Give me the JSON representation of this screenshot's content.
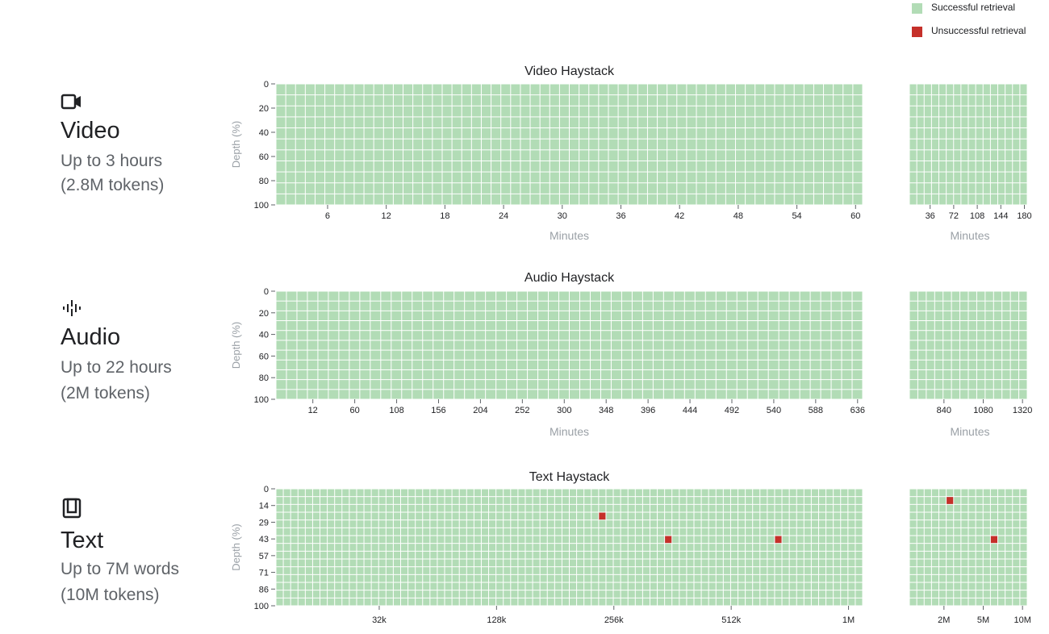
{
  "legend": {
    "success_label": "Successful retrieval",
    "fail_label": "Unsuccessful retrieval",
    "success_color": "#b2dcb6",
    "fail_color": "#c5302a"
  },
  "rows": [
    {
      "icon": "video-camera-icon",
      "title": "Video",
      "subtitle_1": "Up to 3 hours",
      "subtitle_2": "(2.8M tokens)"
    },
    {
      "icon": "audio-waveform-icon",
      "title": "Audio",
      "subtitle_1": "Up to 22 hours",
      "subtitle_2": "(2M tokens)"
    },
    {
      "icon": "book-icon",
      "title": "Text",
      "subtitle_1": "Up to 7M words",
      "subtitle_2": "(10M tokens)"
    }
  ],
  "chart_data": [
    {
      "type": "heatmap",
      "title": "Video Haystack",
      "xlabel": "Minutes",
      "ylabel": "Depth (%)",
      "y_ticks": [
        "0",
        "20",
        "40",
        "60",
        "80",
        "100"
      ],
      "x_ticks": [
        "6",
        "12",
        "18",
        "24",
        "30",
        "36",
        "42",
        "48",
        "54",
        "60"
      ],
      "grid_cols": 60,
      "grid_rows": 11,
      "failures": [],
      "extension": {
        "xlabel": "Minutes",
        "x_ticks": [
          "36",
          "72",
          "108",
          "144",
          "180"
        ],
        "grid_cols": 16,
        "grid_rows": 11,
        "failures": []
      }
    },
    {
      "type": "heatmap",
      "title": "Audio Haystack",
      "xlabel": "Minutes",
      "ylabel": "Depth (%)",
      "y_ticks": [
        "0",
        "20",
        "40",
        "60",
        "80",
        "100"
      ],
      "x_ticks": [
        "12",
        "60",
        "108",
        "156",
        "204",
        "252",
        "300",
        "348",
        "396",
        "444",
        "492",
        "540",
        "588",
        "636"
      ],
      "grid_cols": 56,
      "grid_rows": 11,
      "failures": [],
      "extension": {
        "xlabel": "Minutes",
        "x_ticks": [
          "840",
          "1080",
          "1320"
        ],
        "grid_cols": 14,
        "grid_rows": 11,
        "failures": []
      }
    },
    {
      "type": "heatmap",
      "title": "Text Haystack",
      "xlabel": "",
      "ylabel": "Depth (%)",
      "y_ticks": [
        "0",
        "14",
        "29",
        "43",
        "57",
        "71",
        "86",
        "100"
      ],
      "x_ticks": [
        "32k",
        "128k",
        "256k",
        "512k",
        "1M"
      ],
      "grid_cols": 80,
      "grid_rows": 15,
      "failures": [
        {
          "col": 44,
          "row": 3
        },
        {
          "col": 53,
          "row": 6
        },
        {
          "col": 68,
          "row": 6
        }
      ],
      "extension": {
        "xlabel": "",
        "x_ticks": [
          "2M",
          "5M",
          "10M"
        ],
        "grid_cols": 16,
        "grid_rows": 15,
        "failures": [
          {
            "col": 5,
            "row": 1
          },
          {
            "col": 11,
            "row": 6
          }
        ]
      }
    }
  ]
}
